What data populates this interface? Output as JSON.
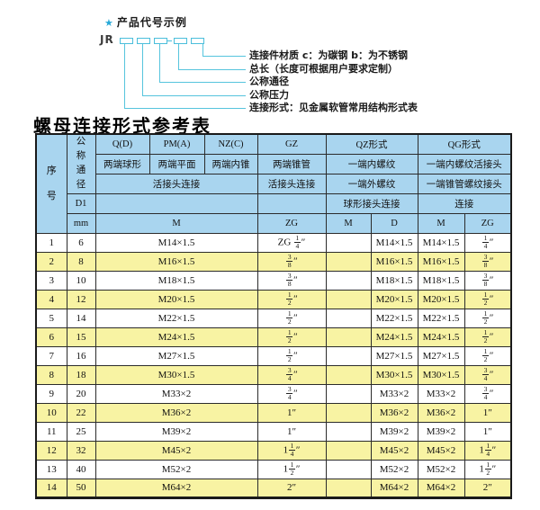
{
  "diagram": {
    "star_icon": "★",
    "title": "产品代号示例",
    "code_prefix": "JR",
    "labels": [
      "连接件材质  c：为碳钢  b：为不锈钢",
      "总长（长度可根据用户要求定制）",
      "公称通径",
      "公称压力",
      "连接形式：见金属软管常用结构形式表"
    ],
    "line_color": "#56c4dd"
  },
  "table": {
    "title": "螺母连接形式参考表",
    "header": {
      "seq": "序号",
      "dn": "公称通径",
      "d1": "D1",
      "mm": "mm",
      "q": "Q(D)",
      "pm": "PM(A)",
      "nz": "NZ(C)",
      "gz": "GZ",
      "qz": "QZ形式",
      "qg": "QG形式",
      "q_sub": "两端球形",
      "pm_sub": "两端平面",
      "nz_sub": "两端内锥",
      "gz_sub": "两端锥管",
      "qz_sub": "一端内螺纹",
      "qg_sub": "一端内螺纹活接头",
      "union_conn": "活接头连接",
      "gz_conn": "活接头连接",
      "qz_sub2": "一端外螺纹",
      "qg_sub2": "一端锥管螺纹接头",
      "qz_conn": "球形接头连接",
      "qg_conn": "连接",
      "m": "M",
      "zg": "ZG",
      "d": "D"
    },
    "columns": [
      "no",
      "dn",
      "m",
      "gz",
      "qz-m",
      "qz-d",
      "qg-m",
      "qg-zg"
    ],
    "rows": [
      [
        "1",
        "6",
        "M14×1.5",
        "ZG {1/4}″",
        "",
        "M14×1.5",
        "M14×1.5",
        "{1/4}″"
      ],
      [
        "2",
        "8",
        "M16×1.5",
        "{3/8}″",
        "",
        "M16×1.5",
        "M16×1.5",
        "{3/8}″"
      ],
      [
        "3",
        "10",
        "M18×1.5",
        "{3/8}″",
        "",
        "M18×1.5",
        "M18×1.5",
        "{3/8}″"
      ],
      [
        "4",
        "12",
        "M20×1.5",
        "{1/2}″",
        "",
        "M20×1.5",
        "M20×1.5",
        "{1/2}″"
      ],
      [
        "5",
        "14",
        "M22×1.5",
        "{1/2}″",
        "",
        "M22×1.5",
        "M22×1.5",
        "{1/2}″"
      ],
      [
        "6",
        "15",
        "M24×1.5",
        "{1/2}″",
        "",
        "M24×1.5",
        "M24×1.5",
        "{1/2}″"
      ],
      [
        "7",
        "16",
        "M27×1.5",
        "{1/2}″",
        "",
        "M27×1.5",
        "M27×1.5",
        "{1/2}″"
      ],
      [
        "8",
        "18",
        "M30×1.5",
        "{3/4}″",
        "",
        "M30×1.5",
        "M30×1.5",
        "{3/4}″"
      ],
      [
        "9",
        "20",
        "M33×2",
        "{3/4}″",
        "",
        "M33×2",
        "M33×2",
        "{3/4}″"
      ],
      [
        "10",
        "22",
        "M36×2",
        "1″",
        "",
        "M36×2",
        "M36×2",
        "1″"
      ],
      [
        "11",
        "25",
        "M39×2",
        "1″",
        "",
        "M39×2",
        "M39×2",
        "1″"
      ],
      [
        "12",
        "32",
        "M45×2",
        "1{1/4}″",
        "",
        "M45×2",
        "M45×2",
        "1{1/4}″"
      ],
      [
        "13",
        "40",
        "M52×2",
        "1{1/2}″",
        "",
        "M52×2",
        "M52×2",
        "1{1/2}″"
      ],
      [
        "14",
        "50",
        "M64×2",
        "2″",
        "",
        "M64×2",
        "M64×2",
        "2″"
      ]
    ],
    "colors": {
      "header_bg": "#a9d5ef",
      "row_alt_bg": "#f8f3a3",
      "border": "#2b2b2b"
    }
  }
}
